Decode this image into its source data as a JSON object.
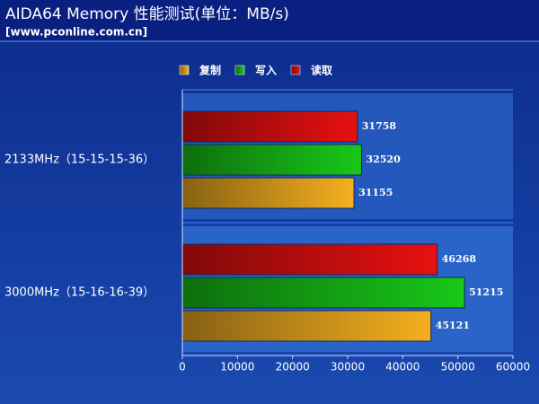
{
  "chart_data": {
    "type": "bar",
    "orientation": "horizontal",
    "title": "AIDA64 Memory 性能测试(单位：MB/s)",
    "subtitle": "[www.pconline.com.cn]",
    "categories": [
      "2133MHz（15-15-15-36）",
      "3000MHz（15-16-16-39）"
    ],
    "series": [
      {
        "name": "复制",
        "color": "#f5b020",
        "values": [
          31155,
          45121
        ]
      },
      {
        "name": "写入",
        "color": "#18c818",
        "values": [
          32520,
          51215
        ]
      },
      {
        "name": "读取",
        "color": "#e81010",
        "values": [
          31758,
          46268
        ]
      }
    ],
    "xlim": [
      0,
      60000
    ],
    "xticks": [
      0,
      10000,
      20000,
      30000,
      40000,
      50000,
      60000
    ]
  }
}
